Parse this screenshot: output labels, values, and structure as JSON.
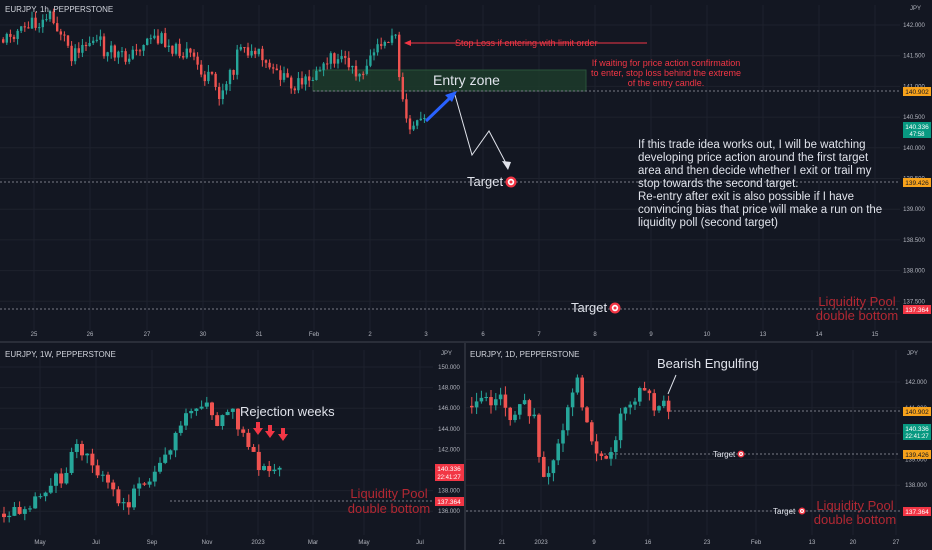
{
  "colors": {
    "bg": "#131722",
    "grid": "#1e222d",
    "up": "#26a69a",
    "down": "#ef5350",
    "text": "#b2b5be",
    "annot": "#e0e3eb",
    "red": "#f23645",
    "dash": "#787b86",
    "zone": "#1d3b2b",
    "zoneStroke": "#2e5e3e",
    "arrow": "#2962ff",
    "orangeTag": "#f7a21b",
    "greenTag": "#089981",
    "redTag": "#f23645"
  },
  "main": {
    "title": "EURJPY, 1h, PEPPERSTONE",
    "currency": "JPY",
    "yticks": [
      "142.000",
      "141.500",
      "141.000",
      "140.500",
      "140.000",
      "139.500",
      "139.000",
      "138.500",
      "138.000",
      "137.500"
    ],
    "xticks": [
      "25",
      "26",
      "27",
      "30",
      "31",
      "Feb",
      "2",
      "3",
      "6",
      "7",
      "8",
      "9",
      "10",
      "13",
      "14",
      "15"
    ],
    "tag_entry": "140.902",
    "tag_price": "140.336",
    "tag_time": "47:58",
    "tag_target": "139.426",
    "tag_liquidity": "137.364",
    "stop_loss_note": "Stop Loss if entering with limit order",
    "confirm_note": [
      "If waiting for price action confirmation",
      "to enter, stop loss behind the extreme",
      "of the entry candle."
    ],
    "entry_zone": "Entry zone",
    "target_label": "Target",
    "target2_label": "Target",
    "plan_text": [
      "If this trade idea works out, I will be watching",
      "developing price action around the first target",
      "area and then decide whether I exit or trail my",
      "stop towards the second target.",
      "Re-entry after exit is also possible if I have",
      "convincing bias that price will make a run on the",
      "liquidity poll (second target)"
    ],
    "liquidity_label": [
      "Liquidity Pool",
      "double bottom"
    ]
  },
  "weekly": {
    "title": "EURJPY, 1W, PEPPERSTONE",
    "currency": "JPY",
    "yticks": [
      "150.000",
      "148.000",
      "146.000",
      "144.000",
      "142.000",
      "140.000",
      "138.000",
      "136.000"
    ],
    "xticks": [
      "May",
      "Jul",
      "Sep",
      "Nov",
      "2023",
      "Mar",
      "May",
      "Jul"
    ],
    "tag_price": "140.336",
    "tag_time": "22:41:27",
    "tag_liquidity": "137.364",
    "rejection_label": "Rejection weeks",
    "liquidity_label": [
      "Liquidity Pool",
      "double bottom"
    ]
  },
  "daily": {
    "title": "EURJPY, 1D, PEPPERSTONE",
    "currency": "JPY",
    "yticks": [
      "142.000",
      "141.000",
      "140.000",
      "139.000",
      "138.000",
      "137.000"
    ],
    "xticks": [
      "21",
      "2023",
      "9",
      "16",
      "23",
      "Feb",
      "13",
      "20",
      "27",
      "Mar",
      "13",
      "22",
      "Apr"
    ],
    "tag_entry": "140.902",
    "tag_price": "140.336",
    "tag_time": "22:41:27",
    "tag_target": "139.426",
    "tag_liquidity": "137.364",
    "bearish_label": "Bearish Engulfing",
    "target_label": "Target",
    "target2_label": "Target",
    "liquidity_label": [
      "Liquidity Pool",
      "double bottom"
    ]
  },
  "chart_data": [
    {
      "type": "candlestick",
      "title": "EURJPY, 1h, PEPPERSTONE",
      "ylim": [
        137.2,
        142.2
      ],
      "levels": {
        "entry": 140.902,
        "target": 139.426,
        "liquidity": 137.364,
        "current": 140.336
      },
      "entry_zone": [
        140.92,
        141.1
      ]
    },
    {
      "type": "candlestick",
      "title": "EURJPY, 1W, PEPPERSTONE",
      "ylim": [
        135.3,
        151.2
      ],
      "levels": {
        "current": 140.336,
        "liquidity": 137.364
      }
    },
    {
      "type": "candlestick",
      "title": "EURJPY, 1D, PEPPERSTONE",
      "ylim": [
        136.6,
        142.9
      ],
      "levels": {
        "entry": 140.902,
        "target": 139.426,
        "liquidity": 137.364,
        "current": 140.336
      }
    }
  ]
}
